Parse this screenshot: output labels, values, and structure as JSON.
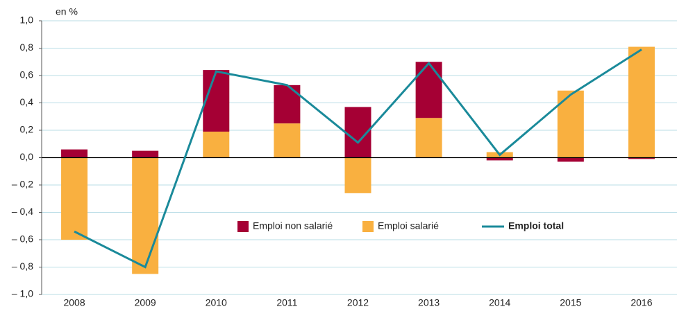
{
  "chart_data": {
    "type": "bar_line",
    "y_label": "en %",
    "categories": [
      "2008",
      "2009",
      "2010",
      "2011",
      "2012",
      "2013",
      "2014",
      "2015",
      "2016"
    ],
    "series": [
      {
        "name": "Emploi salarié",
        "color": "#f9b040",
        "kind": "bar",
        "values": [
          -0.6,
          -0.85,
          0.19,
          0.25,
          -0.26,
          0.29,
          0.04,
          0.49,
          0.81
        ]
      },
      {
        "name": "Emploi non salarié",
        "color": "#a50034",
        "kind": "bar",
        "values": [
          0.06,
          0.05,
          0.45,
          0.28,
          0.37,
          0.41,
          -0.02,
          -0.03,
          -0.01
        ]
      },
      {
        "name": "Emploi total",
        "color": "#1a8a9a",
        "kind": "line",
        "values": [
          -0.54,
          -0.8,
          0.63,
          0.53,
          0.11,
          0.69,
          0.02,
          0.46,
          0.79
        ]
      }
    ],
    "ylim": [
      -1.0,
      1.0
    ],
    "yticks": [
      {
        "value": -1.0,
        "label": "– 1,0"
      },
      {
        "value": -0.8,
        "label": "– 0,8"
      },
      {
        "value": -0.6,
        "label": "– 0,6"
      },
      {
        "value": -0.4,
        "label": "– 0,4"
      },
      {
        "value": -0.2,
        "label": "– 0,2"
      },
      {
        "value": 0,
        "label": "0,0"
      },
      {
        "value": 0.2,
        "label": "0,2"
      },
      {
        "value": 0.4,
        "label": "0,4"
      },
      {
        "value": 0.6,
        "label": "0,6"
      },
      {
        "value": 0.8,
        "label": "0,8"
      },
      {
        "value": 1.0,
        "label": "1,0"
      }
    ],
    "grid": true
  }
}
